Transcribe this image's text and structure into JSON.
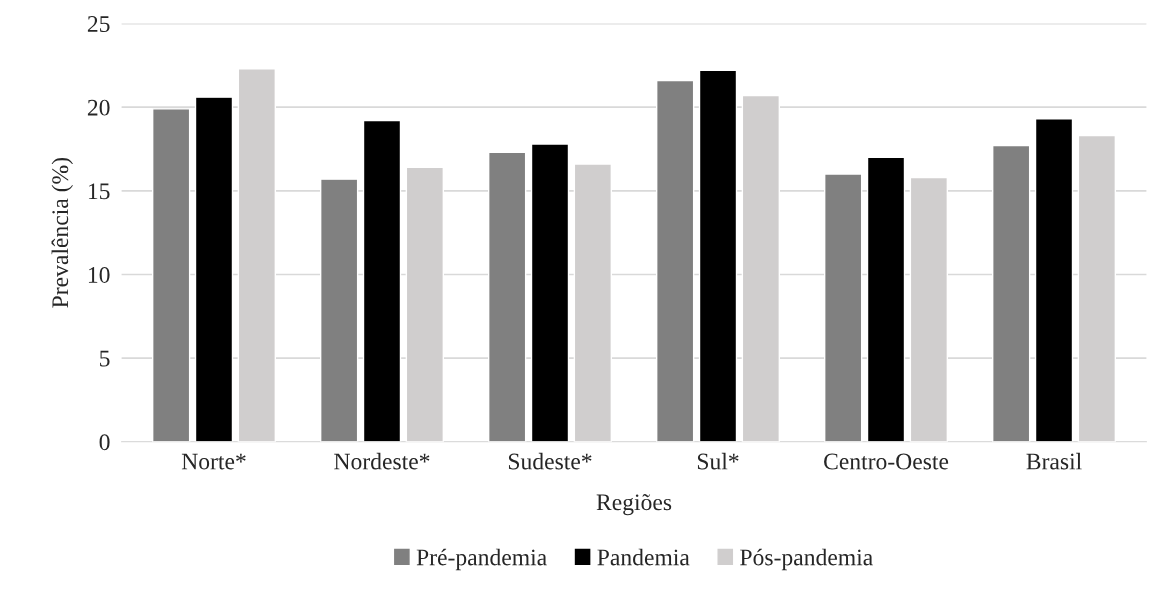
{
  "chart_data": {
    "type": "bar",
    "xlabel": "Regiões",
    "ylabel": "Prevalência (%)",
    "categories": [
      "Norte*",
      "Nordeste*",
      "Sudeste*",
      "Sul*",
      "Centro-Oeste",
      "Brasil"
    ],
    "series": [
      {
        "name": "Pré-pandemia",
        "color": "#808080",
        "values": [
          19.9,
          15.7,
          17.3,
          21.6,
          16.0,
          17.7
        ]
      },
      {
        "name": "Pandemia",
        "color": "#000000",
        "values": [
          20.6,
          19.2,
          17.8,
          22.2,
          17.0,
          19.3
        ]
      },
      {
        "name": "Pós-pandemia",
        "color": "#d0cece",
        "values": [
          22.3,
          16.4,
          16.6,
          20.7,
          15.8,
          18.3
        ]
      }
    ],
    "ylim": [
      0,
      25
    ],
    "yticks": [
      0,
      5,
      10,
      15,
      20,
      25
    ],
    "grid": "y",
    "legend": "bottom"
  }
}
